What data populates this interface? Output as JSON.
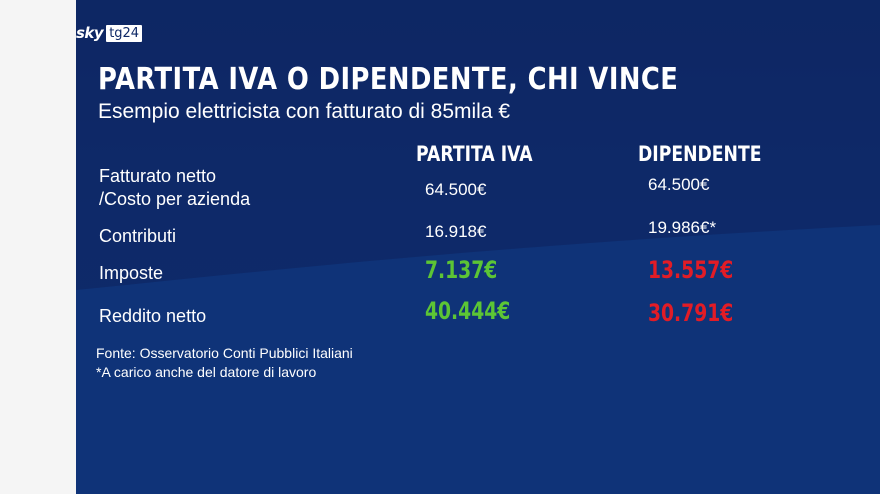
{
  "brand": {
    "sky": "sky",
    "tg": "tg24"
  },
  "title": "PARTITA IVA O DIPENDENTE, CHI VINCE",
  "subtitle": "Esempio elettricista con fatturato di 85mila €",
  "columns": [
    "PARTITA IVA",
    "DIPENDENTE"
  ],
  "rows": [
    {
      "label_line1": "Fatturato netto",
      "label_line2": "/Costo per azienda",
      "partita_iva": "64.500€",
      "dipendente": "64.500€"
    },
    {
      "label": "Contributi",
      "partita_iva": "16.918€",
      "dipendente": "19.986€*"
    },
    {
      "label": "Imposte",
      "partita_iva": "7.137€",
      "dipendente": "13.557€"
    },
    {
      "label": "Reddito netto",
      "partita_iva": "40.444€",
      "dipendente": "30.791€"
    }
  ],
  "notes": {
    "source": "Fonte: Osservatorio Conti Pubblici Italiani",
    "footnote": "*A carico anche del datore di lavoro"
  },
  "colors": {
    "background": "#0e2866",
    "positive": "#5cc535",
    "negative": "#e21c26"
  }
}
